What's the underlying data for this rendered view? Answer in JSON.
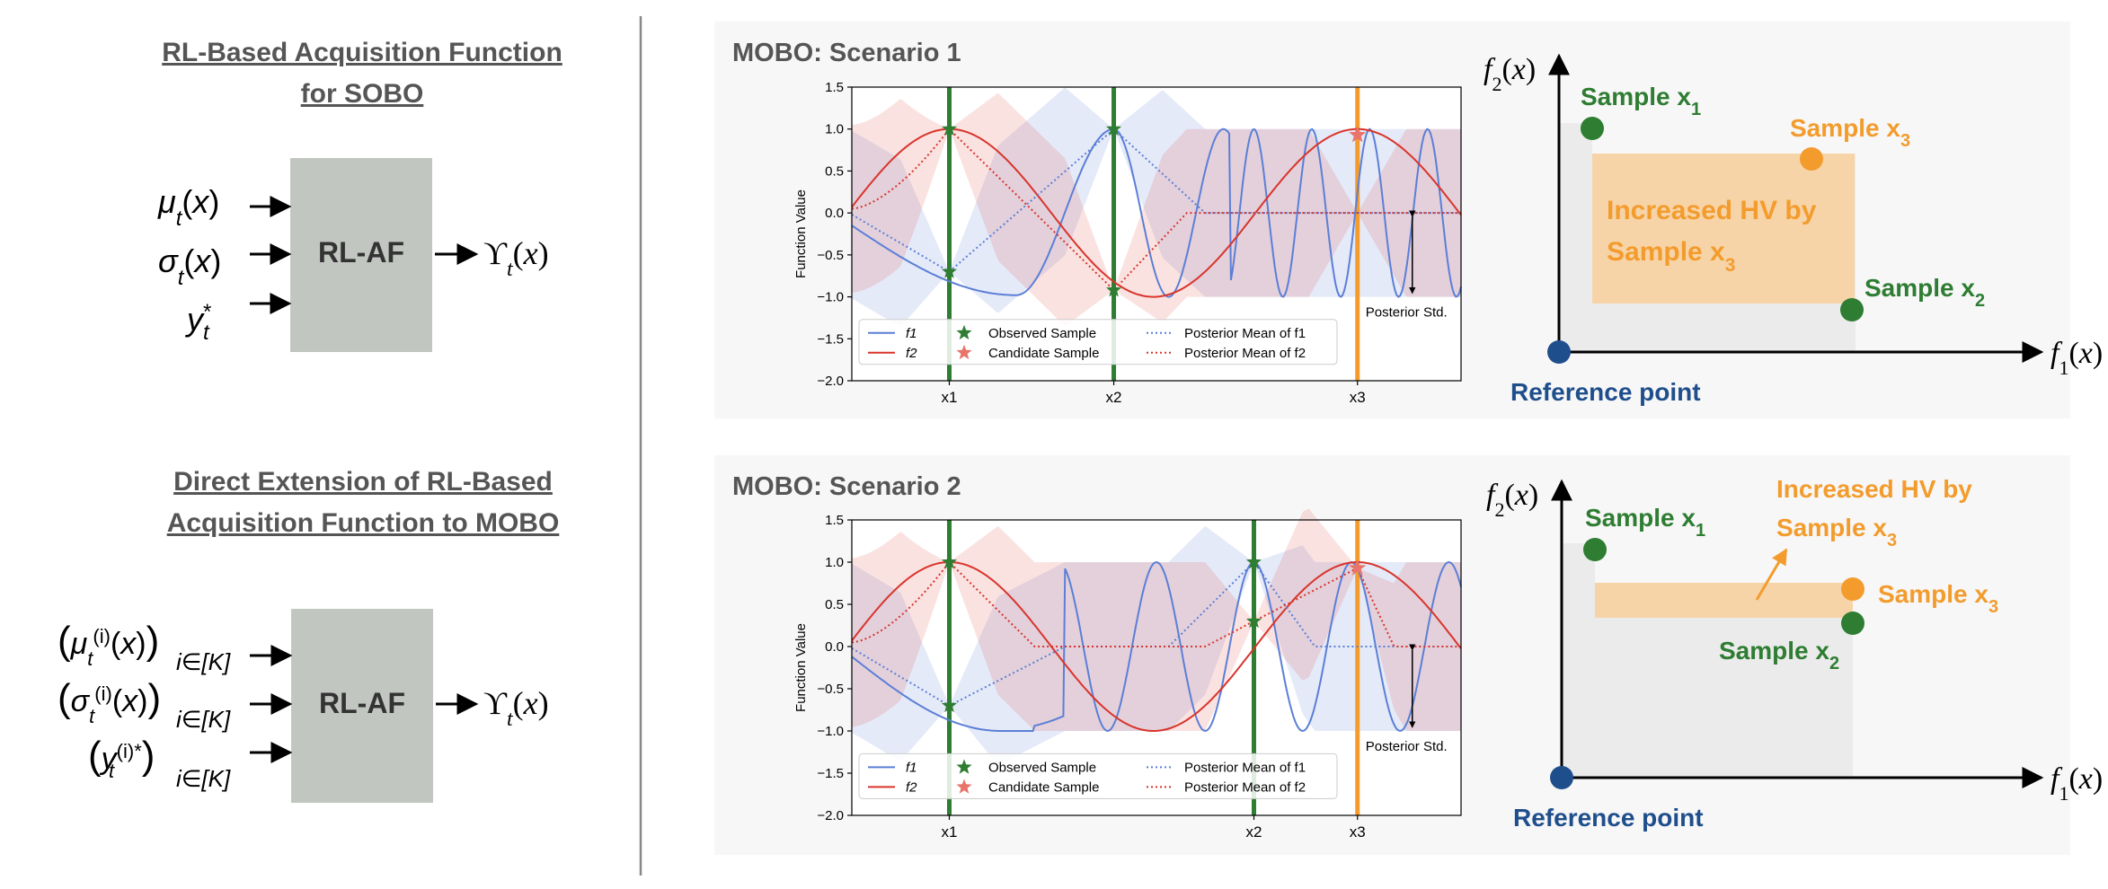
{
  "left_panel": {
    "sobo": {
      "title_line1": "RL-Based Acquisition Function",
      "title_line2": "for SOBO",
      "inputs": [
        "μ",
        "σ",
        "y"
      ],
      "box_label": "RL-AF",
      "output": "ϒ"
    },
    "mobo": {
      "title_line1": "Direct Extension of RL-Based",
      "title_line2": "Acquisition Function to MOBO",
      "inputs": [
        "μ",
        "σ",
        "y"
      ],
      "box_label": "RL-AF",
      "output": "ϒ"
    }
  },
  "colors": {
    "f1": "#5b7fd6",
    "f2": "#d9342b",
    "observed": "#2e7d32",
    "candidate": "#f39c2d",
    "reference": "#1f4e8c",
    "increased_hv": "#f7d4a8",
    "dominated": "#ebebeb",
    "box": "#c2c6c1",
    "panel_bg": "#f7f7f7"
  },
  "scenarios": [
    {
      "title": "MOBO: Scenario 1",
      "chart_data": {
        "type": "line",
        "ylabel": "Function Value",
        "ylim": [
          -2.0,
          1.5
        ],
        "yticks": [
          "1.5",
          "1.0",
          "0.5",
          "0.0",
          "−0.5",
          "−1.0",
          "−1.5",
          "−2.0"
        ],
        "xticks": [
          {
            "label": "x1",
            "x": 0.16
          },
          {
            "label": "x2",
            "x": 0.43
          },
          {
            "label": "x3",
            "x": 0.83
          }
        ],
        "annotation": "Posterior Std.",
        "legend": [
          {
            "label": "f1",
            "kind": "line-blue"
          },
          {
            "label": "f2",
            "kind": "line-red"
          },
          {
            "label": "Observed Sample",
            "kind": "star-green"
          },
          {
            "label": "Candidate Sample",
            "kind": "star-salmon"
          },
          {
            "label": "Posterior Mean of f1",
            "kind": "dotted-blue"
          },
          {
            "label": "Posterior Mean of f2",
            "kind": "dotted-red"
          }
        ],
        "observed": [
          {
            "x": 0.16,
            "f1": -0.7,
            "f2": 1.0
          },
          {
            "x": 0.43,
            "f1": 1.0,
            "f2": -0.92
          }
        ],
        "candidate": {
          "x": 0.83,
          "f1": 0.93,
          "f2": 0.93
        }
      },
      "pareto": {
        "x_axis": "f",
        "y_axis": "f",
        "reference_label": "Reference point",
        "samples": [
          {
            "label": "Sample x",
            "sub": "1",
            "kind": "observed"
          },
          {
            "label": "Sample x",
            "sub": "3",
            "kind": "candidate"
          },
          {
            "label": "Sample x",
            "sub": "2",
            "kind": "observed"
          }
        ],
        "hv_line1": "Increased HV by",
        "hv_line2": "Sample x",
        "hv_sub": "3"
      }
    },
    {
      "title": "MOBO: Scenario 2",
      "chart_data": {
        "type": "line",
        "ylabel": "Function Value",
        "ylim": [
          -2.0,
          1.5
        ],
        "yticks": [
          "1.5",
          "1.0",
          "0.5",
          "0.0",
          "−0.5",
          "−1.0",
          "−1.5",
          "−2.0"
        ],
        "xticks": [
          {
            "label": "x1",
            "x": 0.16
          },
          {
            "label": "x2",
            "x": 0.66
          },
          {
            "label": "x3",
            "x": 0.83
          }
        ],
        "annotation": "Posterior Std.",
        "legend": [
          {
            "label": "f1",
            "kind": "line-blue"
          },
          {
            "label": "f2",
            "kind": "line-red"
          },
          {
            "label": "Observed Sample",
            "kind": "star-green"
          },
          {
            "label": "Candidate Sample",
            "kind": "star-salmon"
          },
          {
            "label": "Posterior Mean of f1",
            "kind": "dotted-blue"
          },
          {
            "label": "Posterior Mean of f2",
            "kind": "dotted-red"
          }
        ],
        "observed": [
          {
            "x": 0.16,
            "f1": -0.7,
            "f2": 1.0
          },
          {
            "x": 0.66,
            "f1": 1.0,
            "f2": 0.3
          }
        ],
        "candidate": {
          "x": 0.83,
          "f1": 0.93,
          "f2": 0.93
        }
      },
      "pareto": {
        "x_axis": "f",
        "y_axis": "f",
        "reference_label": "Reference point",
        "samples": [
          {
            "label": "Sample x",
            "sub": "1",
            "kind": "observed"
          },
          {
            "label": "Sample x",
            "sub": "3",
            "kind": "candidate"
          },
          {
            "label": "Sample x",
            "sub": "2",
            "kind": "observed"
          }
        ],
        "hv_line1": "Increased HV by",
        "hv_line2": "Sample x",
        "hv_sub": "3"
      }
    }
  ]
}
